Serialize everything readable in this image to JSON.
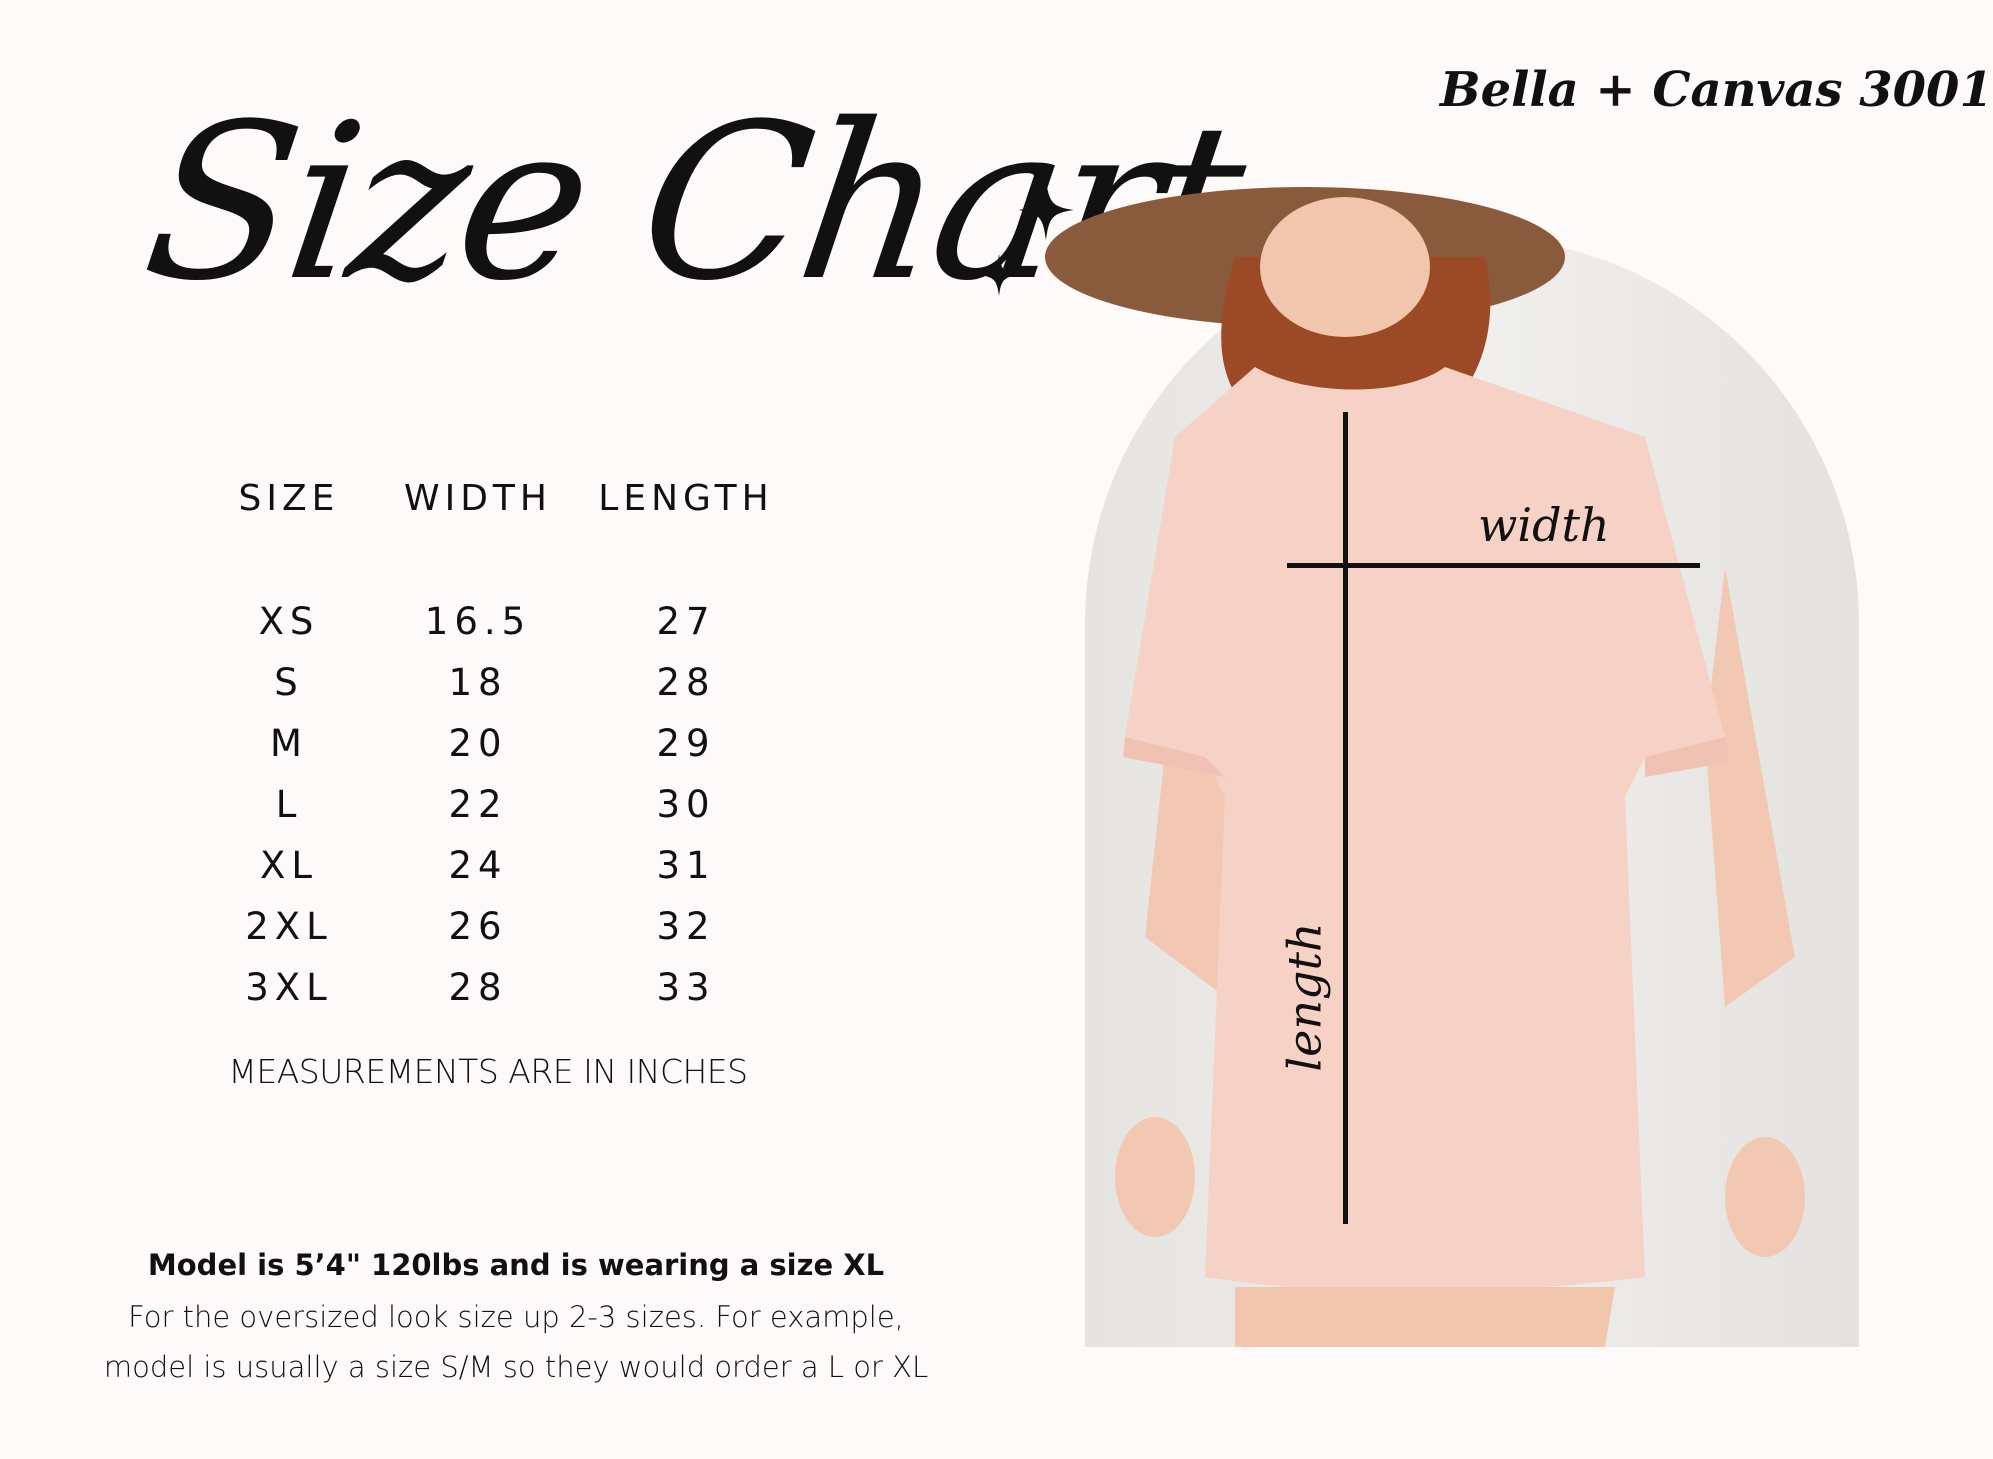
{
  "title": "Size Chart",
  "brand": "Bella + Canvas 3001",
  "table": {
    "headers": [
      "SIZE",
      "WIDTH",
      "LENGTH"
    ],
    "rows": [
      [
        "XS",
        "16.5",
        "27"
      ],
      [
        "S",
        "18",
        "28"
      ],
      [
        "M",
        "20",
        "29"
      ],
      [
        "L",
        "22",
        "30"
      ],
      [
        "XL",
        "24",
        "31"
      ],
      [
        "2XL",
        "26",
        "32"
      ],
      [
        "3XL",
        "28",
        "33"
      ]
    ]
  },
  "measurement_note": "MEASUREMENTS ARE IN INCHES",
  "model_info": {
    "headline": "Model is 5’4\" 120lbs and is wearing a size XL",
    "line1": "For the oversized look size up 2-3 sizes. For example,",
    "line2": "model is usually a size S/M so they would order a L or XL"
  },
  "photo": {
    "width_label": "width",
    "length_label": "length",
    "shirt_color": "#f6d2c6"
  }
}
